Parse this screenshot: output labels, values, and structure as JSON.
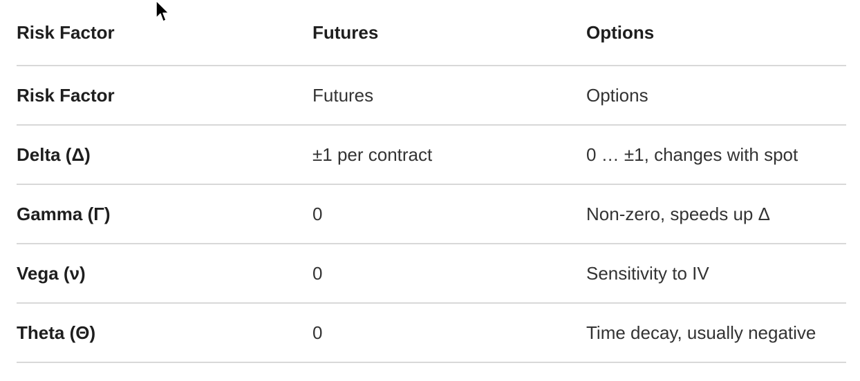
{
  "table": {
    "headers": [
      "Risk Factor",
      "Futures",
      "Options"
    ],
    "rows": [
      [
        "Risk Factor",
        "Futures",
        "Options"
      ],
      [
        "Delta (Δ)",
        "±1 per contract",
        "0 … ±1, changes with spot"
      ],
      [
        "Gamma (Γ)",
        "0",
        "Non-zero, speeds up Δ"
      ],
      [
        "Vega (ν)",
        "0",
        "Sensitivity to IV"
      ],
      [
        "Theta (Θ)",
        "0",
        "Time decay, usually negative"
      ]
    ]
  },
  "colors": {
    "text_strong": "#1e1e1e",
    "text": "#333333",
    "divider": "#d8d8d8",
    "background": "#ffffff"
  },
  "icons": {
    "cursor": "mouse-pointer-icon"
  }
}
